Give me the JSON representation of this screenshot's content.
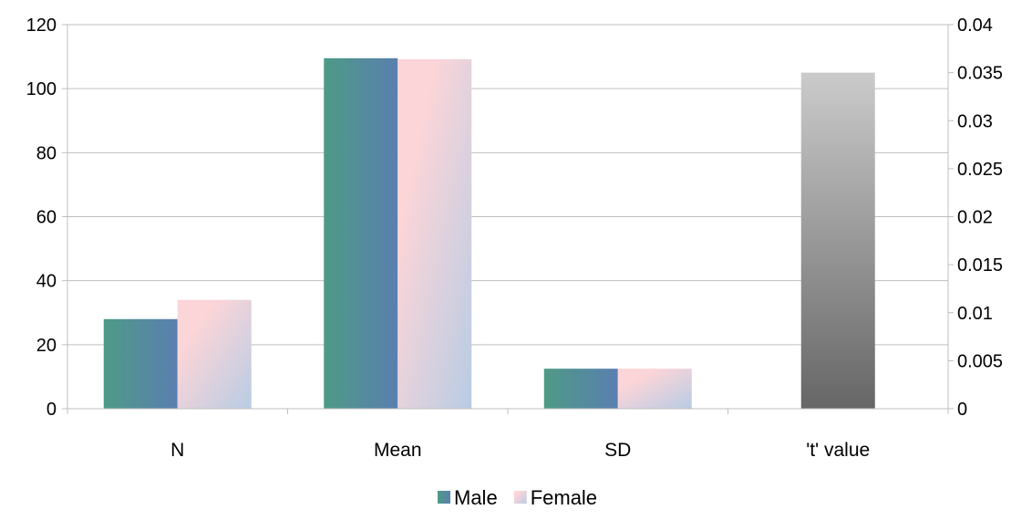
{
  "chart_data": {
    "type": "bar",
    "categories": [
      "N",
      "Mean",
      "SD",
      "'t' value"
    ],
    "series": [
      {
        "name": "Male",
        "axis": "left",
        "values": [
          28,
          109.5,
          12.5,
          null
        ],
        "colors": [
          "#4e9a86",
          "#5a7fb0"
        ]
      },
      {
        "name": "Female",
        "axis": "left",
        "values": [
          34,
          109.2,
          12.5,
          null
        ],
        "colors": [
          "#fcd5d8",
          "#b8cce4"
        ]
      },
      {
        "axis": "right",
        "values": [
          null,
          null,
          null,
          0.035
        ],
        "colors": [
          "#cbcbcb",
          "#666666"
        ]
      }
    ],
    "y_left": {
      "min": 0,
      "max": 120,
      "ticks": [
        "0",
        "20",
        "40",
        "60",
        "80",
        "100",
        "120"
      ]
    },
    "y_right": {
      "min": 0,
      "max": 0.04,
      "ticks": [
        "0",
        "0.005",
        "0.01",
        "0.015",
        "0.02",
        "0.025",
        "0.03",
        "0.035",
        "0.04"
      ]
    },
    "grid": true,
    "legend_position": "bottom"
  }
}
